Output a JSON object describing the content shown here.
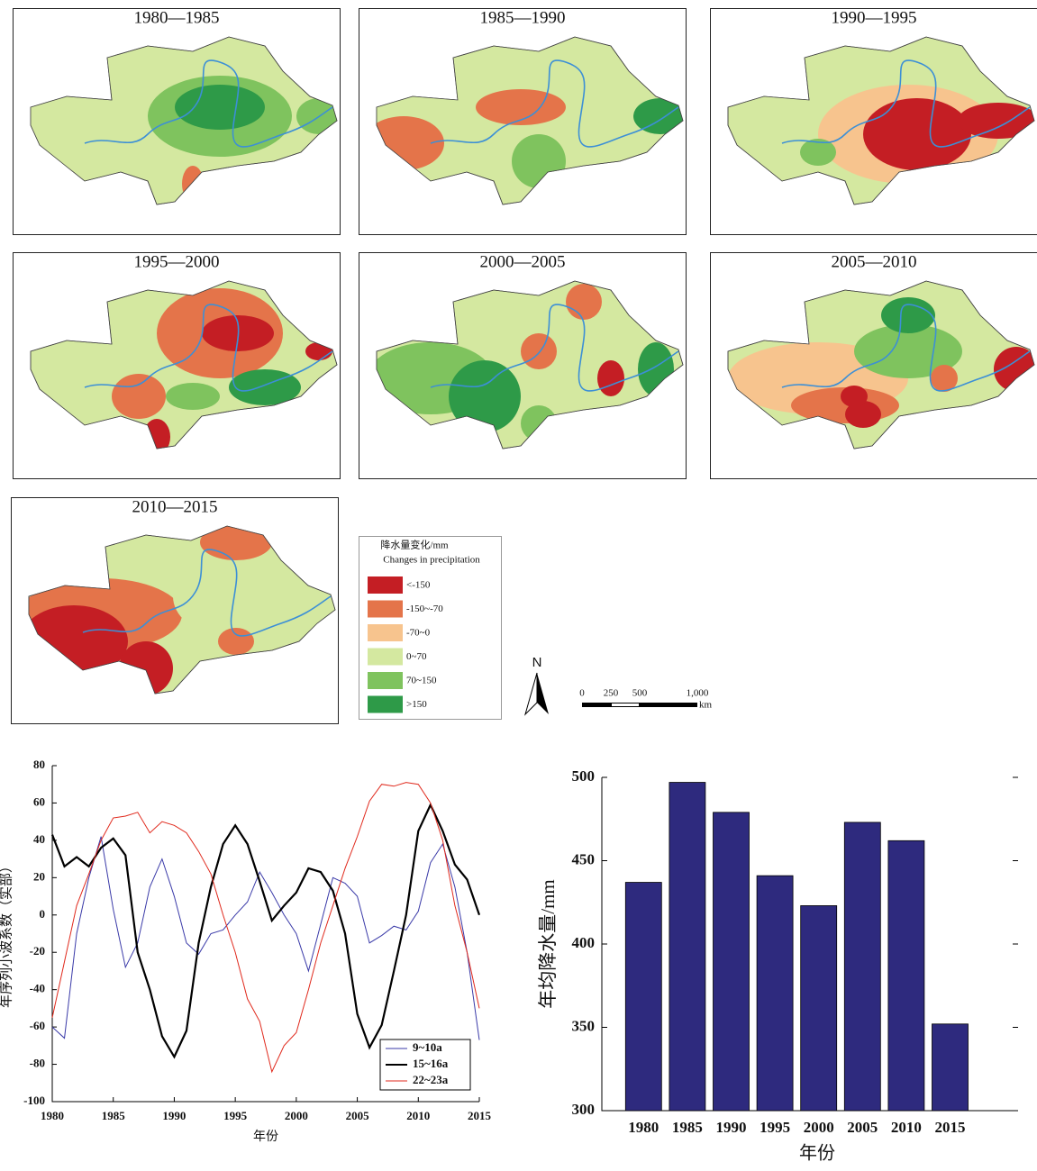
{
  "maps": {
    "panels": [
      {
        "title": "1980—1985",
        "blobs": [
          [
            3,
            60,
            130,
            70,
            40
          ],
          [
            4,
            230,
            110,
            80,
            45
          ],
          [
            5,
            230,
            100,
            50,
            25
          ],
          [
            4,
            340,
            110,
            25,
            20
          ],
          [
            1,
            200,
            185,
            12,
            20
          ],
          [
            3,
            100,
            60,
            50,
            20
          ]
        ]
      },
      {
        "title": "1985—1990",
        "blobs": [
          [
            3,
            130,
            110,
            120,
            40
          ],
          [
            1,
            50,
            140,
            45,
            30
          ],
          [
            1,
            180,
            100,
            50,
            20
          ],
          [
            4,
            200,
            160,
            30,
            30
          ],
          [
            5,
            335,
            110,
            30,
            20
          ],
          [
            3,
            240,
            70,
            30,
            20
          ]
        ]
      },
      {
        "title": "1990—1995",
        "blobs": [
          [
            2,
            220,
            130,
            100,
            55
          ],
          [
            0,
            230,
            130,
            60,
            40
          ],
          [
            0,
            320,
            115,
            45,
            20
          ],
          [
            4,
            120,
            150,
            20,
            15
          ],
          [
            3,
            70,
            90,
            40,
            15
          ]
        ]
      },
      {
        "title": "1995—2000",
        "blobs": [
          [
            1,
            230,
            80,
            70,
            50
          ],
          [
            0,
            250,
            80,
            40,
            20
          ],
          [
            1,
            140,
            150,
            30,
            25
          ],
          [
            5,
            280,
            140,
            40,
            20
          ],
          [
            4,
            200,
            150,
            30,
            15
          ],
          [
            0,
            160,
            195,
            15,
            20
          ],
          [
            0,
            340,
            100,
            15,
            10
          ],
          [
            3,
            80,
            150,
            30,
            20
          ]
        ]
      },
      {
        "title": "2000—2005",
        "blobs": [
          [
            4,
            80,
            130,
            70,
            40
          ],
          [
            5,
            140,
            150,
            40,
            40
          ],
          [
            4,
            200,
            180,
            20,
            20
          ],
          [
            1,
            200,
            100,
            20,
            20
          ],
          [
            0,
            280,
            130,
            15,
            20
          ],
          [
            5,
            330,
            120,
            20,
            30
          ],
          [
            1,
            250,
            45,
            20,
            20
          ]
        ]
      },
      {
        "title": "2005—2010",
        "blobs": [
          [
            2,
            120,
            130,
            100,
            40
          ],
          [
            1,
            150,
            160,
            60,
            20
          ],
          [
            0,
            170,
            170,
            20,
            15
          ],
          [
            0,
            160,
            150,
            15,
            12
          ],
          [
            4,
            220,
            100,
            60,
            30
          ],
          [
            5,
            220,
            60,
            30,
            20
          ],
          [
            0,
            340,
            120,
            25,
            25
          ],
          [
            1,
            260,
            130,
            15,
            15
          ]
        ]
      },
      {
        "title": "2010—2015",
        "blobs": [
          [
            1,
            100,
            120,
            90,
            40
          ],
          [
            0,
            70,
            150,
            60,
            40
          ],
          [
            0,
            150,
            180,
            30,
            30
          ],
          [
            3,
            230,
            100,
            50,
            40
          ],
          [
            1,
            250,
            150,
            20,
            15
          ],
          [
            1,
            250,
            40,
            40,
            20
          ],
          [
            3,
            340,
            120,
            20,
            20
          ]
        ]
      }
    ],
    "legend": {
      "title": "降水量变化/mm",
      "subtitle": "Changes in precipitation",
      "items": [
        {
          "label": "<-150",
          "color": "#c41e24"
        },
        {
          "label": "-150~-70",
          "color": "#e4744a"
        },
        {
          "label": "-70~0",
          "color": "#f7c48e"
        },
        {
          "label": "0~70",
          "color": "#d4e8a0"
        },
        {
          "label": "70~150",
          "color": "#7fc35e"
        },
        {
          "label": ">150",
          "color": "#2e9a48"
        }
      ]
    },
    "north": "N",
    "scale": {
      "ticks": [
        "0",
        "250",
        "500",
        "1,000"
      ],
      "unit": "km"
    }
  },
  "chart_data": [
    {
      "type": "line",
      "xlabel": "年份",
      "ylabel": "年序列小波系数（实部）",
      "x": [
        1980,
        1981,
        1982,
        1983,
        1984,
        1985,
        1986,
        1987,
        1988,
        1989,
        1990,
        1991,
        1992,
        1993,
        1994,
        1995,
        1996,
        1997,
        1998,
        1999,
        2000,
        2001,
        2002,
        2003,
        2004,
        2005,
        2006,
        2007,
        2008,
        2009,
        2010,
        2011,
        2012,
        2013,
        2014,
        2015
      ],
      "series": [
        {
          "name": "9~10a",
          "color": "#3a3aa8",
          "values": [
            -60,
            -66,
            -10,
            20,
            42,
            3,
            -28,
            -15,
            15,
            30,
            10,
            -15,
            -21,
            -10,
            -8,
            0,
            7,
            23,
            12,
            0,
            -10,
            -30,
            -5,
            20,
            17,
            10,
            -15,
            -11,
            -6,
            -8,
            2,
            28,
            38,
            15,
            -20,
            -67
          ]
        },
        {
          "name": "15~16a",
          "color": "#000000",
          "values": [
            43,
            26,
            31,
            26,
            36,
            41,
            32,
            -20,
            -40,
            -65,
            -76,
            -62,
            -15,
            15,
            38,
            48,
            38,
            18,
            -3,
            5,
            12,
            25,
            23,
            13,
            -10,
            -53,
            -71,
            -59,
            -30,
            0,
            45,
            59,
            45,
            27,
            19,
            0
          ]
        },
        {
          "name": "22~23a",
          "color": "#e0291c",
          "values": [
            -55,
            -25,
            5,
            22,
            40,
            52,
            53,
            55,
            44,
            50,
            48,
            44,
            34,
            22,
            0,
            -20,
            -45,
            -57,
            -84,
            -70,
            -63,
            -40,
            -15,
            5,
            25,
            42,
            61,
            70,
            69,
            71,
            70,
            60,
            40,
            5,
            -20,
            -50
          ]
        }
      ],
      "xlim": [
        1980,
        2015
      ],
      "xticks": [
        1980,
        1985,
        1990,
        1995,
        2000,
        2005,
        2010,
        2015
      ],
      "ylim": [
        -100,
        80
      ],
      "yticks": [
        -100,
        -80,
        -60,
        -40,
        -20,
        0,
        20,
        40,
        60,
        80
      ],
      "legend": "lower right"
    },
    {
      "type": "bar",
      "xlabel": "年份",
      "ylabel": "年均降水量/mm",
      "categories": [
        "1980",
        "1985",
        "1990",
        "1995",
        "2000",
        "2005",
        "2010",
        "2015"
      ],
      "values": [
        437,
        497,
        479,
        441,
        423,
        473,
        462,
        352
      ],
      "color": "#2e2a7e",
      "ylim": [
        300,
        500
      ],
      "yticks": [
        300,
        350,
        400,
        450,
        500
      ]
    }
  ]
}
